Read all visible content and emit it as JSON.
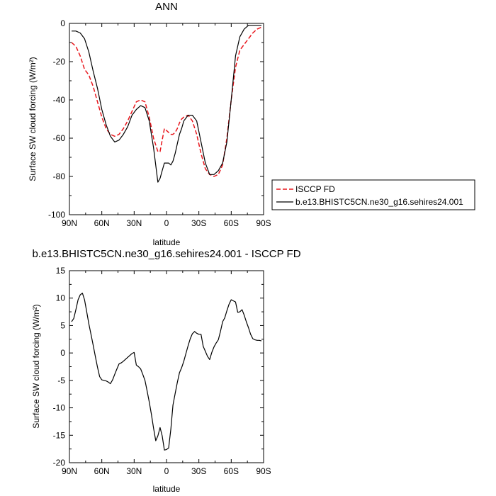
{
  "chart_data": [
    {
      "type": "line",
      "title": "ANN",
      "xlabel": "latitude",
      "ylabel": "Surface SW cloud forcing (W/m²)",
      "xlim": [
        90,
        -90
      ],
      "ylim": [
        -100,
        0
      ],
      "xticks": [
        90,
        60,
        30,
        0,
        -30,
        -60,
        -90
      ],
      "xtick_labels": [
        "90N",
        "60N",
        "30N",
        "0",
        "30S",
        "60S",
        "90S"
      ],
      "yticks": [
        0,
        -20,
        -40,
        -60,
        -80,
        -100
      ],
      "ytick_labels": [
        "0",
        "-20",
        "-40",
        "-60",
        "-80",
        "-100"
      ],
      "legend_position": "right",
      "series": [
        {
          "name": "ISCCP FD",
          "color": "#e8161c",
          "dash": "dashed",
          "x": [
            88,
            84,
            80,
            76,
            72,
            68,
            64,
            60,
            56,
            52,
            48,
            44,
            40,
            36,
            32,
            28,
            24,
            20,
            16,
            12,
            8,
            6,
            4,
            2,
            0,
            -2,
            -4,
            -6,
            -8,
            -10,
            -12,
            -14,
            -16,
            -20,
            -24,
            -28,
            -32,
            -36,
            -40,
            -44,
            -48,
            -52,
            -56,
            -60,
            -64,
            -68,
            -72,
            -76,
            -80,
            -84,
            -88
          ],
          "y": [
            -10,
            -12,
            -17,
            -24,
            -27,
            -33,
            -41,
            -49,
            -55,
            -58,
            -59,
            -58,
            -55,
            -51,
            -46,
            -41,
            -40,
            -41,
            -49,
            -60,
            -67,
            -67,
            -61,
            -55,
            -56,
            -57,
            -58,
            -58,
            -57,
            -55,
            -52,
            -50,
            -49,
            -48,
            -51,
            -58,
            -68,
            -76,
            -79,
            -80,
            -79,
            -74,
            -60,
            -40,
            -23,
            -14,
            -11,
            -8,
            -5,
            -3,
            -2
          ]
        },
        {
          "name": "b.e13.BHISTC5CN.ne30_g16.sehires24.001",
          "color": "#000000",
          "dash": "solid",
          "x": [
            88,
            84,
            80,
            76,
            72,
            68,
            64,
            60,
            56,
            52,
            48,
            44,
            40,
            36,
            32,
            28,
            24,
            20,
            16,
            12,
            8,
            6,
            4,
            2,
            0,
            -2,
            -4,
            -6,
            -8,
            -10,
            -12,
            -14,
            -16,
            -20,
            -24,
            -28,
            -32,
            -36,
            -40,
            -44,
            -48,
            -52,
            -56,
            -60,
            -64,
            -68,
            -72,
            -76,
            -80,
            -84,
            -88
          ],
          "y": [
            -4,
            -4,
            -5,
            -8,
            -15,
            -25,
            -34,
            -45,
            -53,
            -59,
            -62,
            -61,
            -58,
            -54,
            -48,
            -45,
            -43,
            -44,
            -51,
            -65,
            -83,
            -81,
            -77,
            -73,
            -73,
            -73,
            -74,
            -72,
            -68,
            -63,
            -58,
            -55,
            -51,
            -48,
            -48,
            -51,
            -62,
            -73,
            -79,
            -79,
            -77,
            -73,
            -62,
            -40,
            -17,
            -7,
            -3,
            -1,
            -1,
            -1,
            -1
          ]
        }
      ]
    },
    {
      "type": "line",
      "title": "b.e13.BHISTC5CN.ne30_g16.sehires24.001 - ISCCP FD",
      "xlabel": "latitude",
      "ylabel": "Surface SW cloud forcing (W/m²)",
      "xlim": [
        90,
        -90
      ],
      "ylim": [
        -20,
        15
      ],
      "xticks": [
        90,
        60,
        30,
        0,
        -30,
        -60,
        -90
      ],
      "xtick_labels": [
        "90N",
        "60N",
        "30N",
        "0",
        "30S",
        "60S",
        "90S"
      ],
      "yticks": [
        15,
        10,
        5,
        0,
        -5,
        -10,
        -15,
        -20
      ],
      "ytick_labels": [
        "15",
        "10",
        "5",
        "0",
        "-5",
        "-10",
        "-15",
        "-20"
      ],
      "series": [
        {
          "color": "#000000",
          "dash": "solid",
          "x": [
            88,
            86,
            84,
            82,
            80,
            78,
            76,
            74,
            72,
            70,
            68,
            66,
            64,
            62,
            60,
            56,
            54,
            52,
            50,
            48,
            46,
            44,
            42,
            40,
            36,
            32,
            30,
            28,
            26,
            24,
            22,
            20,
            18,
            16,
            14,
            12,
            10,
            8,
            6,
            4,
            2,
            0,
            -2,
            -4,
            -6,
            -8,
            -10,
            -12,
            -14,
            -16,
            -18,
            -20,
            -22,
            -24,
            -26,
            -28,
            -30,
            -32,
            -34,
            -36,
            -38,
            -40,
            -42,
            -44,
            -46,
            -48,
            -50,
            -52,
            -54,
            -56,
            -58,
            -60,
            -62,
            -64,
            -66,
            -68,
            -70,
            -72,
            -74,
            -76,
            -78,
            -80,
            -82,
            -84,
            -86,
            -88
          ],
          "y": [
            5.7,
            6.3,
            7.9,
            9.7,
            10.6,
            10.9,
            9.7,
            7.5,
            5.3,
            3.4,
            1.4,
            -0.6,
            -2.6,
            -4.3,
            -4.9,
            -5.1,
            -5.3,
            -5.6,
            -4.9,
            -3.9,
            -2.9,
            -2.0,
            -1.8,
            -1.5,
            -0.8,
            -0.1,
            0.1,
            -2.2,
            -2.5,
            -2.9,
            -3.9,
            -5.0,
            -6.9,
            -8.9,
            -11.2,
            -13.7,
            -16.0,
            -15.1,
            -13.6,
            -15.1,
            -17.7,
            -17.6,
            -17.3,
            -13.9,
            -9.5,
            -7.4,
            -5.4,
            -3.6,
            -2.7,
            -1.5,
            -0.1,
            1.3,
            2.6,
            3.5,
            3.9,
            3.6,
            3.4,
            3.4,
            1.2,
            0.3,
            -0.6,
            -1.2,
            0.1,
            1.1,
            1.8,
            2.4,
            3.9,
            5.7,
            6.4,
            7.7,
            8.9,
            9.7,
            9.5,
            9.3,
            7.4,
            7.5,
            7.9,
            6.9,
            5.7,
            4.6,
            3.4,
            2.6,
            2.4,
            2.3,
            2.3,
            2.2
          ]
        }
      ]
    }
  ]
}
